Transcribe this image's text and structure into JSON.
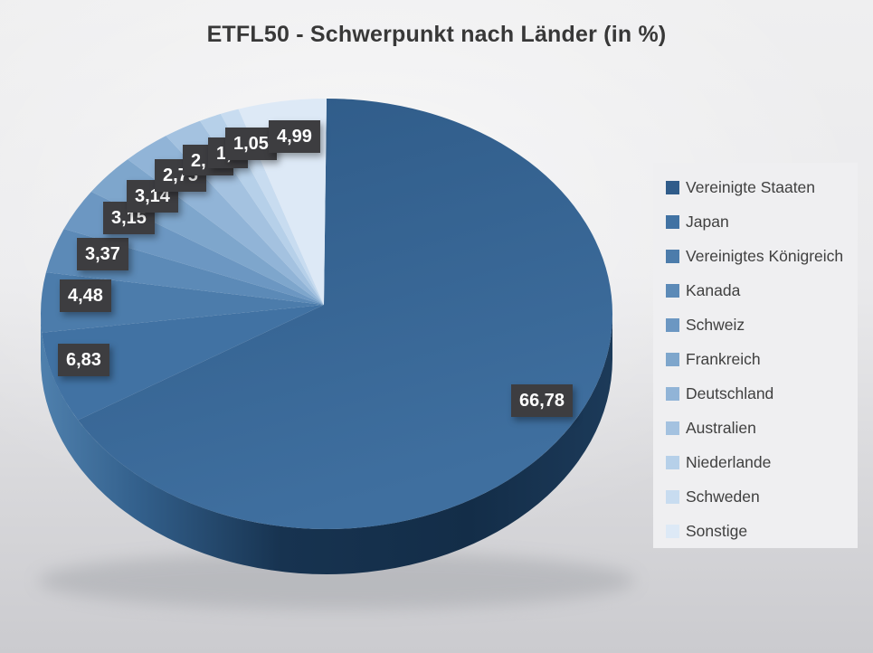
{
  "chart_data": {
    "type": "pie",
    "title": "ETFL50 - Schwerpunkt nach Länder (in %)",
    "unit": "%",
    "effect": "3d",
    "legend_position": "right",
    "decimal_separator": ",",
    "slices": [
      {
        "name": "Vereinigte Staaten",
        "value": 66.78,
        "label": "66,78",
        "color": "#305c8a"
      },
      {
        "name": "Japan",
        "value": 6.83,
        "label": "6,83",
        "color": "#4172a3"
      },
      {
        "name": "Vereinigtes Königreich",
        "value": 4.48,
        "label": "4,48",
        "color": "#4c7cab"
      },
      {
        "name": "Kanada",
        "value": 3.37,
        "label": "3,37",
        "color": "#5c8ab7"
      },
      {
        "name": "Schweiz",
        "value": 3.15,
        "label": "3,15",
        "color": "#6c97c2"
      },
      {
        "name": "Frankreich",
        "value": 3.14,
        "label": "3,14",
        "color": "#7ea6cc"
      },
      {
        "name": "Deutschland",
        "value": 2.75,
        "label": "2,75",
        "color": "#91b4d7"
      },
      {
        "name": "Australien",
        "value": 2.2,
        "label": "2,",
        "label_occluded": true,
        "value_estimated": true,
        "color": "#a4c2e0"
      },
      {
        "name": "Niederlande",
        "value": 1.26,
        "label": "1,",
        "label_occluded": true,
        "value_estimated": true,
        "color": "#b6d0e9"
      },
      {
        "name": "Schweden",
        "value": 1.05,
        "label": "1,05",
        "color": "#c8dcf0"
      },
      {
        "name": "Sonstige",
        "value": 4.99,
        "label": "4,99",
        "color": "#dde9f6"
      }
    ]
  },
  "style_colors": {
    "label_box_bg": "#3d3d40",
    "label_text": "#ffffff",
    "title_text": "#383838",
    "legend_text": "#404040",
    "legend_panel_bg": "#efeff1",
    "pie_side_dark": "#152f4b",
    "pie_side_light": "#4f80ad"
  }
}
